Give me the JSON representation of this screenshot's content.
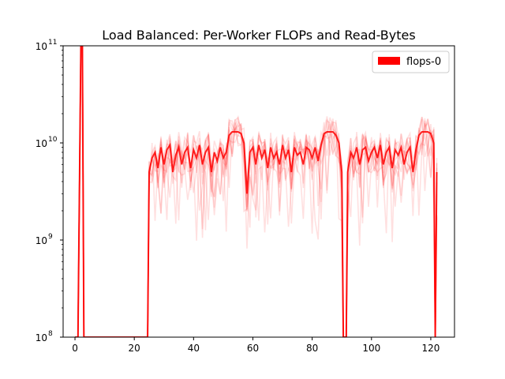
{
  "chart_data": {
    "type": "line",
    "title": "Load Balanced: Per-Worker FLOPs and Read-Bytes",
    "xlabel": "",
    "ylabel": "",
    "xlim": [
      -4,
      128
    ],
    "ylim": [
      100000000.0,
      100000000000.0
    ],
    "yscale": "log",
    "x_ticks": [
      0,
      20,
      40,
      60,
      80,
      100,
      120
    ],
    "y_ticks": [
      {
        "value": 100000000.0,
        "base": "10",
        "exp": "8"
      },
      {
        "value": 1000000000.0,
        "base": "10",
        "exp": "9"
      },
      {
        "value": 10000000000.0,
        "base": "10",
        "exp": "10"
      },
      {
        "value": 100000000000.0,
        "base": "10",
        "exp": "11"
      }
    ],
    "grid": false,
    "legend": {
      "position": "top-right",
      "entries": [
        {
          "label": "flops-0",
          "color": "#ff0000"
        }
      ]
    },
    "series_color": "#ff0000",
    "series": [
      {
        "name": "flops-0",
        "x": [
          0,
          1,
          2,
          2.5,
          3,
          24.5,
          25,
          26,
          27,
          28,
          29,
          30,
          31,
          32,
          33,
          34,
          35,
          36,
          37,
          38,
          39,
          40,
          41,
          42,
          43,
          44,
          45,
          46,
          47,
          48,
          49,
          50,
          51,
          52,
          53,
          54,
          55,
          56,
          57,
          58,
          59,
          60,
          61,
          62,
          63,
          64,
          65,
          66,
          67,
          68,
          69,
          70,
          71,
          72,
          73,
          74,
          75,
          76,
          77,
          78,
          79,
          80,
          81,
          82,
          83,
          84,
          85,
          86,
          87,
          88,
          89,
          90,
          90.5,
          91.5,
          92,
          93,
          94,
          95,
          96,
          97,
          98,
          99,
          100,
          101,
          102,
          103,
          104,
          105,
          106,
          107,
          108,
          109,
          110,
          111,
          112,
          113,
          114,
          115,
          116,
          117,
          118,
          119,
          120,
          121,
          121.5,
          122
        ],
        "y": [
          100000000.0,
          100000000.0,
          100000000000.0,
          100000000000.0,
          100000000.0,
          100000000.0,
          5000000000.0,
          7000000000.0,
          8000000000.0,
          5500000000.0,
          9000000000.0,
          6000000000.0,
          8500000000.0,
          9500000000.0,
          5000000000.0,
          7500000000.0,
          9000000000.0,
          6000000000.0,
          8000000000.0,
          9000000000.0,
          5500000000.0,
          8500000000.0,
          7000000000.0,
          9500000000.0,
          6000000000.0,
          8000000000.0,
          9000000000.0,
          5000000000.0,
          8000000000.0,
          6500000000.0,
          9000000000.0,
          7000000000.0,
          8000000000.0,
          12000000000.0,
          13000000000.0,
          13000000000.0,
          13000000000.0,
          12500000000.0,
          10000000000.0,
          3000000000.0,
          8000000000.0,
          9000000000.0,
          6000000000.0,
          9500000000.0,
          7000000000.0,
          8500000000.0,
          5500000000.0,
          9000000000.0,
          7000000000.0,
          8000000000.0,
          6000000000.0,
          9500000000.0,
          7000000000.0,
          8500000000.0,
          5000000000.0,
          9000000000.0,
          7500000000.0,
          8000000000.0,
          6000000000.0,
          9000000000.0,
          8500000000.0,
          7000000000.0,
          9000000000.0,
          6500000000.0,
          9500000000.0,
          12500000000.0,
          13000000000.0,
          13000000000.0,
          13000000000.0,
          12000000000.0,
          10000000000.0,
          5000000000.0,
          100000000.0,
          100000000.0,
          5000000000.0,
          8000000000.0,
          7000000000.0,
          9000000000.0,
          6000000000.0,
          8500000000.0,
          9000000000.0,
          6500000000.0,
          8000000000.0,
          9000000000.0,
          7000000000.0,
          9500000000.0,
          6000000000.0,
          8000000000.0,
          9000000000.0,
          5500000000.0,
          8500000000.0,
          7500000000.0,
          9000000000.0,
          6000000000.0,
          8000000000.0,
          9000000000.0,
          5000000000.0,
          8500000000.0,
          12000000000.0,
          13000000000.0,
          13000000000.0,
          13000000000.0,
          12500000000.0,
          10000000000.0,
          100000000.0,
          5000000000.0
        ]
      }
    ]
  }
}
